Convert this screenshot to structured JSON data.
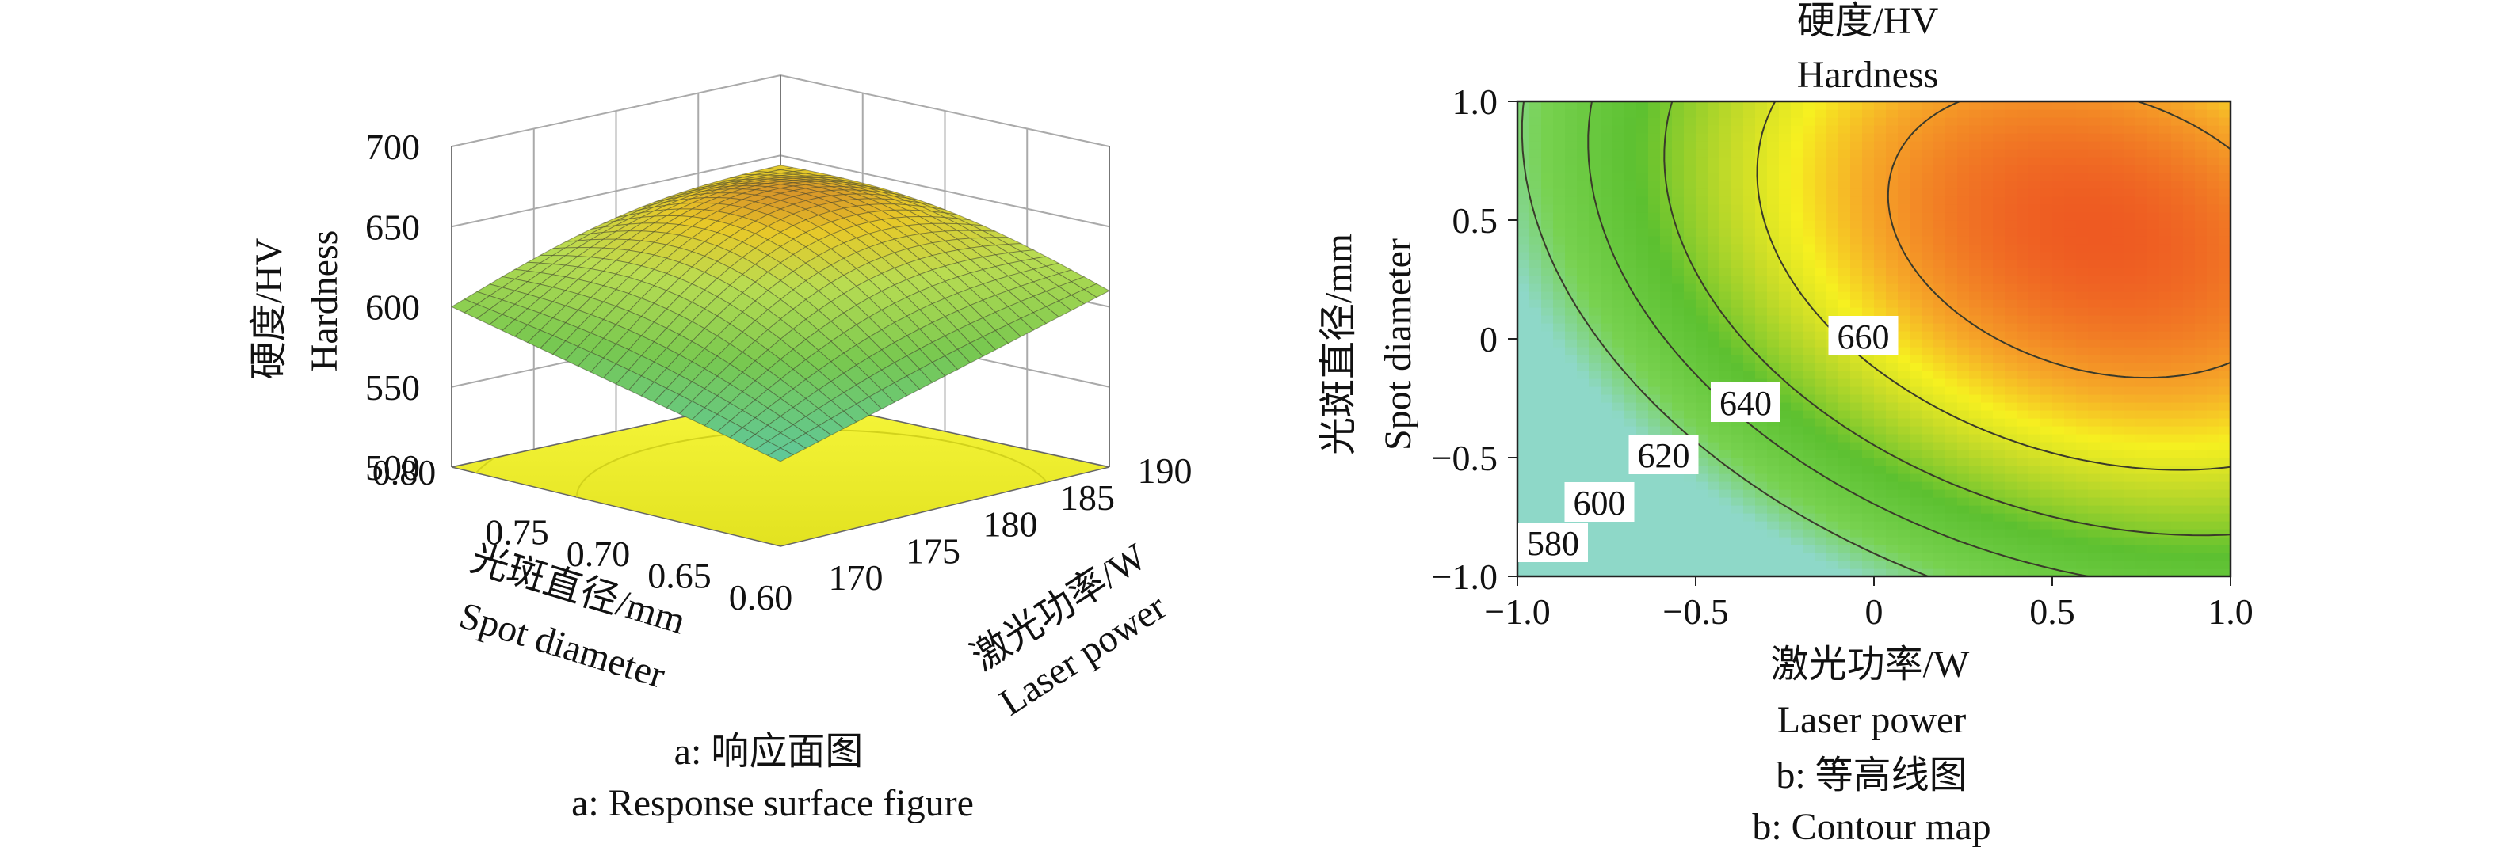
{
  "chart_data": [
    {
      "type": "surface3d",
      "panel_caption_zh": "a: 响应面图",
      "panel_caption_en": "a: Response surface figure",
      "zlabel_zh": "硬度/HV",
      "zlabel_en": "Hardness",
      "xlabel_zh": "光斑直径/mm",
      "xlabel_en": "Spot diameter",
      "ylabel_zh": "激光功率/W",
      "ylabel_en": "Laser power",
      "z_ticks": [
        "500",
        "550",
        "600",
        "650",
        "700"
      ],
      "x_ticks": [
        "0.80",
        "0.75",
        "0.70",
        "0.65",
        "0.60"
      ],
      "y_ticks": [
        "170",
        "175",
        "180",
        "185",
        "190"
      ],
      "zlim": [
        500,
        700
      ],
      "xlim": [
        0.6,
        0.8
      ],
      "ylim": [
        170,
        190
      ],
      "surface": {
        "z_max": 672,
        "z_corner_front": 548,
        "z_corner_left": 600,
        "z_corner_right": 610,
        "z_corner_back": 640
      },
      "colors": {
        "low": "#5dc8a0",
        "mid": "#b8dc52",
        "high": "#c0502a",
        "floor": "#ecec2c"
      }
    },
    {
      "type": "contour",
      "panel_caption_zh": "b: 等高线图",
      "panel_caption_en": "b: Contour map",
      "title_zh": "硬度/HV",
      "title_en": "Hardness",
      "xlabel_zh": "激光功率/W",
      "xlabel_en": "Laser power",
      "ylabel_zh": "光斑直径/mm",
      "ylabel_en": "Spot diameter",
      "xlim": [
        -1.0,
        1.0
      ],
      "ylim": [
        -1.0,
        1.0
      ],
      "x_ticks": [
        "−1.0",
        "−0.5",
        "0",
        "0.5",
        "1.0"
      ],
      "y_ticks": [
        "1.0",
        "0.5",
        "0",
        "−0.5",
        "−1.0"
      ],
      "levels": [
        580,
        600,
        620,
        640,
        660
      ],
      "level_labels": [
        "580",
        "600",
        "620",
        "640",
        "660"
      ],
      "optimum": {
        "x": 0.62,
        "y": 0.45,
        "value": 672
      },
      "colors": {
        "low": "#8ed8c8",
        "mid": "#5cc030",
        "yellow": "#f6f020",
        "high": "#ee5a22"
      }
    }
  ]
}
